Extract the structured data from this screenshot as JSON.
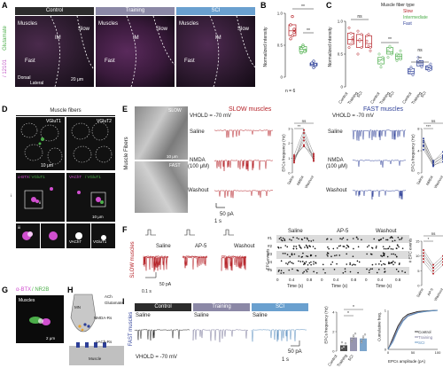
{
  "panels": {
    "A": {
      "label": "A",
      "headers": [
        "Control",
        "Training",
        "SCI"
      ],
      "stain_green": "Glutamate",
      "stain_magenta": "/ 12101",
      "region_labels": {
        "muscles": "Muscles",
        "im": "IM",
        "slow": "Slow",
        "fast": "Fast"
      },
      "orientation": {
        "dorsal": "Dorsal",
        "lateral": "Lateral"
      },
      "scalebar": "20 μm"
    },
    "B": {
      "label": "B",
      "ylabel": "Normalized intensity",
      "n_text": "n = 6",
      "sig": [
        "**",
        "**"
      ]
    },
    "C": {
      "label": "C",
      "ylabel": "Normalized intensity",
      "legend_title": "Muscle fiber type",
      "legend": [
        "Slow",
        "Intermediate",
        "Fast"
      ],
      "sig": [
        "ns",
        "**",
        "ns",
        "**"
      ],
      "group_labels": [
        "Control",
        "Training",
        "SCI"
      ]
    },
    "D": {
      "label": "D",
      "title": "Muscle fibers",
      "vglut1": "VGluT1",
      "vglut2": "VGluT2",
      "abtx": "α-BTX",
      "vglut1b": "/ VGluT1",
      "vacht": "VAChT",
      "vglut1c": "/ VGluT1",
      "scale1": "10 μm",
      "scale2": "10 μm",
      "roman1": "i",
      "roman2": "ii",
      "roman3": "iii",
      "vacht_small": "VAChT",
      "vglut_small": "VGluT1"
    },
    "E": {
      "label": "E",
      "side_label": "Muscle Fibers",
      "slow_tag": "SLOW",
      "fast_tag": "FAST",
      "scale_img": "10 μm",
      "vhold_slow": "VHOLD = -70 mV",
      "vhold_fast": "VHOLD = -70 mV",
      "slow_title": "SLOW muscles",
      "fast_title": "FAST muscles",
      "cond": [
        "Saline",
        "NMDA",
        "(100 μM)",
        "Washout"
      ],
      "cond_fast": [
        "Saline",
        "NMDA",
        "(100 μM)",
        "Washout"
      ],
      "scalebar_amp": "50 pA",
      "scalebar_time": "1 s",
      "ylabel": "EPCs frequency (Hz)",
      "sig_slow": [
        "ns",
        "**"
      ],
      "sig_fast": [
        "ns",
        "***"
      ],
      "xlabels": [
        "Saline",
        "NMDA",
        "Washout"
      ]
    },
    "F": {
      "label": "F",
      "side": "SLOW muscles",
      "conds": [
        "Saline",
        "AP-5",
        "Washout"
      ],
      "raster_heads": [
        "Saline",
        "AP-5",
        "Washout"
      ],
      "rows": [
        "#1",
        "#2",
        "#3",
        "#4",
        "#5"
      ],
      "ylabel": "EPC events",
      "xlabel": "Time (s)",
      "xticks": [
        "0",
        "0.4",
        "0.8"
      ],
      "scale_amp": "50 pA",
      "scale_time": "0.1 s",
      "ylabel_sum": "# EPC events",
      "sig": [
        "ns",
        "*"
      ],
      "sum_x": [
        "Saline",
        "AP-5",
        "Washout"
      ]
    },
    "G": {
      "label": "G",
      "title_a": "α-BTX",
      "title_b": "/ NR2B",
      "region": "Muscles",
      "scale": "2 μm"
    },
    "H": {
      "label": "H",
      "mn": "MN",
      "ach": "ACh",
      "glut": "Glutamate",
      "nmda": "NMDA-Rs",
      "nach": "nACh-Rs",
      "muscle": "Muscle"
    },
    "I": {
      "label": "I",
      "side": "FAST muscles",
      "headers": [
        "Control",
        "Training",
        "SCI"
      ],
      "cond": [
        "Saline",
        "Saline",
        "Saline"
      ],
      "vhold": "VHOLD = -70 mV",
      "scale_amp": "50 pA",
      "scale_time": "1 s",
      "ylabel": "EPCs frequency (Hz)",
      "sig": [
        "*",
        "*"
      ],
      "xlabels": [
        "Control",
        "Training",
        "SCI"
      ],
      "cum_ylabel": "Cumulative freq.",
      "cum_xlabel": "EPCs amplitude (pA)",
      "cum_xticks": [
        "0",
        "50",
        "100"
      ],
      "cum_yticks": [
        "0",
        "1"
      ],
      "legend": [
        "Control",
        "Training",
        "SCI"
      ]
    }
  },
  "colors": {
    "slow": "#b41e24",
    "intermediate": "#4cae4a",
    "fast": "#2d3f98",
    "control": "#222222",
    "training": "#7c7a9c",
    "sci": "#5b8fbf",
    "header_control": "#2c2c2c",
    "header_training": "#8b88a6",
    "header_sci": "#6aa0cf"
  },
  "chart_data": [
    {
      "type": "scatter",
      "panel": "B",
      "categories": [
        "Slow",
        "Intermediate",
        "Fast"
      ],
      "values": [
        [
          0.82,
          0.95,
          0.7,
          0.6,
          0.65,
          0.75
        ],
        [
          0.45,
          0.5,
          0.42,
          0.38,
          0.48,
          0.4
        ],
        [
          0.2,
          0.25,
          0.18,
          0.22,
          0.15,
          0.2
        ]
      ],
      "ylim": [
        0,
        1
      ],
      "yticks": [
        "0",
        "0.5",
        "1.0"
      ]
    },
    {
      "type": "scatter",
      "panel": "C",
      "categories": [
        "Control",
        "Training",
        "SCI"
      ],
      "series": [
        {
          "name": "Slow",
          "values": [
            [
              0.9,
              0.82,
              0.7,
              0.6,
              0.65,
              0.75
            ],
            [
              0.85,
              0.7,
              0.6,
              0.5,
              0.72,
              0.8
            ],
            [
              0.78,
              0.62,
              0.55,
              0.7,
              0.8,
              0.6
            ]
          ]
        },
        {
          "name": "Intermediate",
          "values": [
            [
              0.4,
              0.35,
              0.45,
              0.5,
              0.3,
              0.42
            ],
            [
              0.55,
              0.6,
              0.5,
              0.45,
              0.62,
              0.52
            ],
            [
              0.5,
              0.45,
              0.55,
              0.4,
              0.48,
              0.42
            ]
          ]
        },
        {
          "name": "Fast",
          "values": [
            [
              0.25,
              0.3,
              0.2,
              0.22,
              0.28,
              0.18
            ],
            [
              0.4,
              0.35,
              0.32,
              0.45,
              0.38,
              0.3
            ],
            [
              0.3,
              0.25,
              0.35,
              0.28,
              0.32,
              0.26
            ]
          ]
        }
      ],
      "ylim": [
        0,
        1
      ],
      "yticks": [
        "0",
        "0.5",
        "1.0"
      ]
    },
    {
      "type": "line",
      "panel": "E-slow",
      "categories": [
        "Saline",
        "NMDA",
        "Washout"
      ],
      "series_count": 6,
      "values": [
        [
          0.9,
          2.4,
          1.1
        ],
        [
          1.0,
          1.9,
          0.9
        ],
        [
          0.7,
          2.7,
          0.8
        ],
        [
          1.1,
          1.8,
          1.2
        ],
        [
          0.8,
          2.2,
          1.0
        ],
        [
          1.2,
          2.9,
          1.3
        ]
      ],
      "ylim": [
        0,
        3
      ],
      "yticks": [
        "0",
        "1",
        "2",
        "3"
      ]
    },
    {
      "type": "line",
      "panel": "E-fast",
      "categories": [
        "Saline",
        "NMDA",
        "Washout"
      ],
      "series_count": 6,
      "values": [
        [
          5.5,
          1.5,
          3.0
        ],
        [
          4.8,
          1.2,
          2.5
        ],
        [
          6.2,
          2.0,
          3.8
        ],
        [
          5.0,
          1.8,
          2.8
        ],
        [
          4.2,
          1.4,
          2.0
        ],
        [
          5.8,
          2.2,
          3.2
        ]
      ],
      "ylim": [
        0,
        8
      ],
      "yticks": [
        "0",
        "4",
        "8"
      ]
    },
    {
      "type": "line",
      "panel": "F-summary",
      "categories": [
        "Saline",
        "AP-5",
        "Washout"
      ],
      "series_count": 5,
      "values": [
        [
          10,
          6,
          9
        ],
        [
          12,
          7,
          10
        ],
        [
          9,
          5,
          8
        ],
        [
          11,
          6,
          9
        ],
        [
          8,
          4,
          7
        ]
      ],
      "ylim": [
        0,
        15
      ],
      "yticks": [
        "0",
        "5",
        "10",
        "15"
      ]
    },
    {
      "type": "bar",
      "panel": "I-bar",
      "categories": [
        "Control",
        "Training",
        "SCI"
      ],
      "values": [
        0.6,
        1.4,
        1.3
      ],
      "points": [
        [
          0.3,
          0.5,
          0.8,
          0.9,
          0.4
        ],
        [
          1.0,
          1.6,
          1.8,
          1.2,
          1.4
        ],
        [
          0.9,
          1.5,
          1.7,
          1.1,
          1.3
        ]
      ],
      "ylim": [
        0,
        4
      ],
      "yticks": [
        "0",
        "2",
        "4"
      ]
    },
    {
      "type": "line",
      "panel": "I-cumulative",
      "series": [
        {
          "name": "Control",
          "x": [
            0,
            10,
            20,
            30,
            40,
            60,
            80,
            100
          ],
          "y": [
            0,
            0.3,
            0.6,
            0.8,
            0.9,
            0.97,
            0.99,
            1
          ]
        },
        {
          "name": "Training",
          "x": [
            0,
            10,
            20,
            30,
            40,
            60,
            80,
            100
          ],
          "y": [
            0,
            0.25,
            0.55,
            0.75,
            0.87,
            0.95,
            0.98,
            1
          ]
        },
        {
          "name": "SCI",
          "x": [
            0,
            10,
            20,
            30,
            40,
            60,
            80,
            100
          ],
          "y": [
            0,
            0.2,
            0.5,
            0.72,
            0.85,
            0.94,
            0.98,
            1
          ]
        }
      ],
      "xlim": [
        0,
        100
      ],
      "ylim": [
        0,
        1
      ]
    }
  ]
}
